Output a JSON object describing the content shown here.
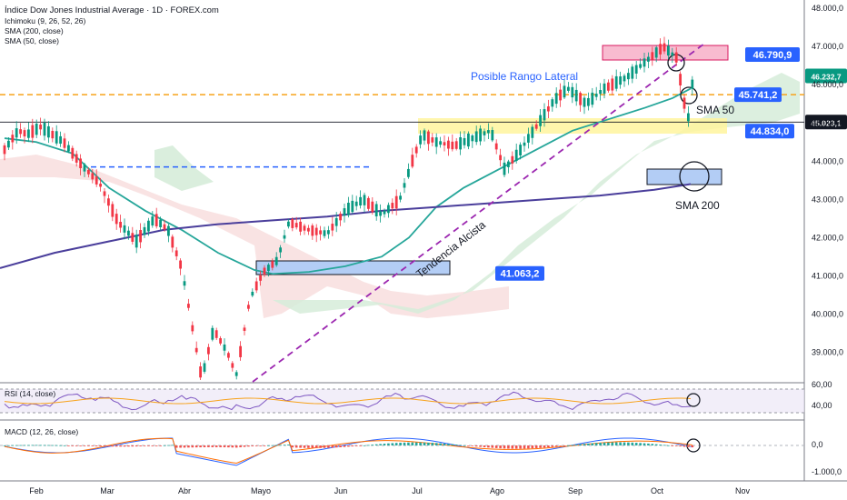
{
  "header": {
    "title": "Índice Dow Jones Industrial Average · 1D · FOREX.com",
    "indicators": [
      "Ichimoku (9, 26, 52, 26)",
      "SMA (200, close)",
      "SMA (50, close)"
    ]
  },
  "colors": {
    "candle_up": "#089981",
    "candle_down": "#f23645",
    "sma50": "#26a69a",
    "sma200": "#4a3e9b",
    "trendline": "#9c27b0",
    "resistance_dash": "#f7a21b",
    "support_dash": "#2962ff",
    "label_blue": "#2962ff",
    "cloud_green": "#d6ecd9",
    "cloud_red": "#f8dcdc",
    "zone_yellow": "#fff59d",
    "zone_pink": "#f8bbd0",
    "zone_blue": "#b3cdf5"
  },
  "chart_data": [
    {
      "type": "candlestick",
      "price_axis": [
        "48.000,0",
        "47.000,0",
        "46.000,0",
        "45.000,0",
        "44.000,0",
        "43.000,0",
        "42.000,0",
        "41.000,0",
        "40.000,0",
        "39.000,0"
      ],
      "ylim": [
        38200,
        48100
      ],
      "time_axis": [
        "Feb",
        "Mar",
        "Abr",
        "Mayo",
        "Jun",
        "Jul",
        "Ago",
        "Sep",
        "Oct",
        "Nov"
      ],
      "price_labels": [
        {
          "text": "46.790,9",
          "value": 46790.9
        },
        {
          "text": "46.232,7",
          "value": 46232.7
        },
        {
          "text": "45.741,2",
          "value": 45741.2
        },
        {
          "text": "45.023,1",
          "value": 45023.1
        },
        {
          "text": "44.834,0",
          "value": 44834.0
        },
        {
          "text": "41.063,2",
          "value": 41063.2
        }
      ],
      "annotations": {
        "range": "Posible Rango Lateral",
        "trend": "Tendencia Alcista",
        "sma50": "SMA 50",
        "sma200": "SMA 200"
      }
    },
    {
      "type": "line",
      "name": "RSI (14, close)",
      "axis": [
        "60,00",
        "40,00"
      ]
    },
    {
      "type": "bar",
      "name": "MACD (12, 26, close)",
      "axis": [
        "0,0",
        "-1.000,0"
      ]
    }
  ]
}
